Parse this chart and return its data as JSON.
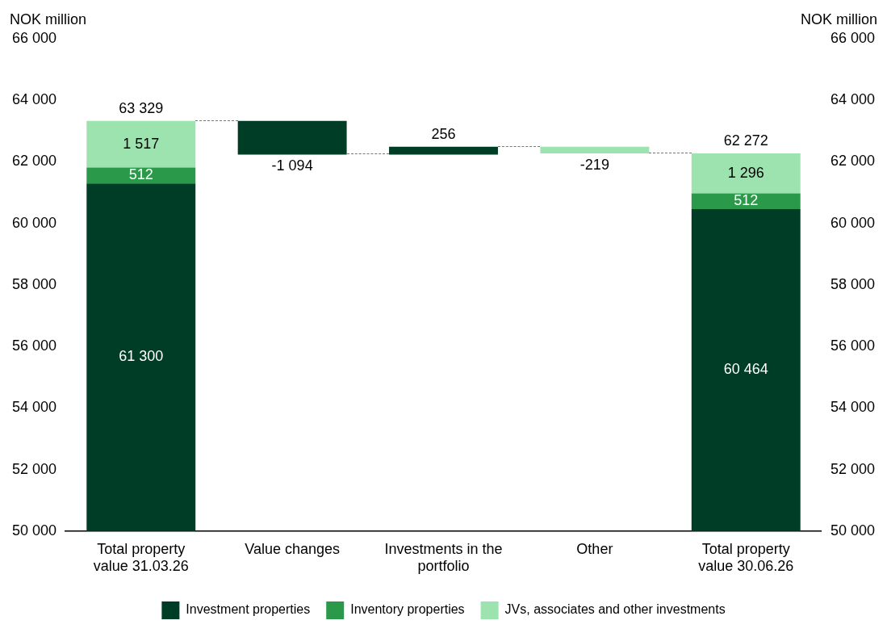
{
  "chart_data": {
    "type": "bar",
    "categories": [
      "Total property value 31.03.26",
      "Value changes",
      "Investments in the portfolio",
      "Other",
      "Total property value 30.06.26"
    ],
    "series": [
      {
        "name": "Investment properties",
        "color": "#003d27",
        "base": [
          0,
          63329,
          62235,
          null,
          0
        ],
        "values": [
          61300,
          -1094,
          256,
          null,
          60464
        ],
        "value_labels": [
          "61 300",
          "-1 094",
          "256",
          null,
          "60 464"
        ]
      },
      {
        "name": "Inventory properties",
        "color": "#2a9a4a",
        "base": [
          61300,
          null,
          null,
          null,
          60464
        ],
        "values": [
          512,
          null,
          null,
          null,
          512
        ],
        "value_labels": [
          "512",
          null,
          null,
          null,
          "512"
        ]
      },
      {
        "name": "JVs, associates and other investments",
        "color": "#9de3b0",
        "base": [
          61812,
          null,
          null,
          62491,
          60976
        ],
        "values": [
          1517,
          null,
          null,
          -219,
          1296
        ],
        "value_labels": [
          "1 517",
          null,
          null,
          "-219",
          "1 296"
        ]
      }
    ],
    "totals": [
      "63 329",
      null,
      null,
      null,
      "62 272"
    ],
    "ylabel": "NOK million",
    "y2label": "NOK million",
    "ylim": [
      50000,
      66000
    ],
    "yticks": [
      {
        "value": 50000,
        "label": "50 000"
      },
      {
        "value": 52000,
        "label": "52 000"
      },
      {
        "value": 54000,
        "label": "54 000"
      },
      {
        "value": 56000,
        "label": "56 000"
      },
      {
        "value": 58000,
        "label": "58 000"
      },
      {
        "value": 60000,
        "label": "60 000"
      },
      {
        "value": 62000,
        "label": "62 000"
      },
      {
        "value": 64000,
        "label": "64 000"
      },
      {
        "value": 66000,
        "label": "66 000"
      }
    ],
    "y2lim": [
      50000,
      66000
    ],
    "y2ticks": [
      {
        "value": 50000,
        "label": "50 000"
      },
      {
        "value": 52000,
        "label": "52 000"
      },
      {
        "value": 54000,
        "label": "54 000"
      },
      {
        "value": 56000,
        "label": "56 000"
      },
      {
        "value": 58000,
        "label": "58 000"
      },
      {
        "value": 60000,
        "label": "60 000"
      },
      {
        "value": 62000,
        "label": "62 000"
      },
      {
        "value": 64000,
        "label": "64 000"
      },
      {
        "value": 66000,
        "label": "66 000"
      }
    ],
    "grid": false,
    "legend": "bottom"
  }
}
